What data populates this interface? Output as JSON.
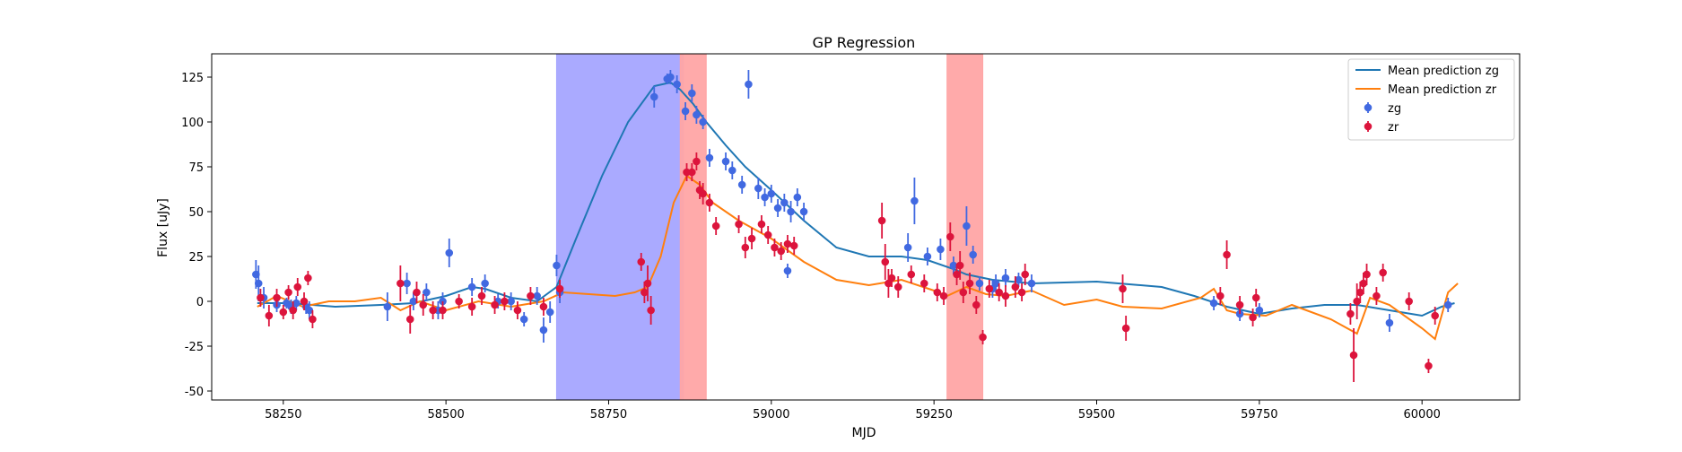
{
  "chart_data": {
    "type": "scatter",
    "title": "GP Regression",
    "xlabel": "MJD",
    "ylabel": "Flux [uJy]",
    "xlim": [
      58140,
      60150
    ],
    "ylim": [
      -55,
      138
    ],
    "xticks": [
      58250,
      58500,
      58750,
      59000,
      59250,
      59500,
      59750,
      60000
    ],
    "yticks": [
      -50,
      -25,
      0,
      25,
      50,
      75,
      100,
      125
    ],
    "legend_position": "top-right",
    "shaded_regions": [
      {
        "x0": 58670,
        "x1": 58865,
        "color": "#a5a5ff"
      },
      {
        "x0": 58860,
        "x1": 58900,
        "color": "#ffa5a5"
      },
      {
        "x0": 59270,
        "x1": 59325,
        "color": "#ffa5a5"
      }
    ],
    "series": [
      {
        "name": "Mean prediction zg",
        "kind": "line",
        "color": "#1f77b4",
        "x": [
          58210,
          58260,
          58330,
          58400,
          58450,
          58500,
          58540,
          58560,
          58600,
          58640,
          58670,
          58700,
          58740,
          58780,
          58820,
          58845,
          58860,
          58880,
          58900,
          58930,
          58960,
          59000,
          59050,
          59100,
          59150,
          59200,
          59240,
          59280,
          59300,
          59340,
          59400,
          59500,
          59600,
          59650,
          59700,
          59750,
          59800,
          59850,
          59900,
          59950,
          60000,
          60030,
          60050
        ],
        "y": [
          -1,
          -1,
          -3,
          -2,
          -1,
          3,
          8,
          7,
          2,
          0,
          8,
          35,
          70,
          100,
          120,
          122,
          118,
          110,
          100,
          87,
          75,
          62,
          45,
          30,
          25,
          25,
          23,
          18,
          15,
          12,
          10,
          11,
          8,
          3,
          -3,
          -7,
          -4,
          -2,
          -2,
          -5,
          -8,
          -3,
          -1
        ]
      },
      {
        "name": "Mean prediction zr",
        "kind": "line",
        "color": "#ff7f0e",
        "x": [
          58210,
          58240,
          58280,
          58320,
          58360,
          58400,
          58430,
          58460,
          58500,
          58550,
          58600,
          58650,
          58680,
          58720,
          58760,
          58790,
          58810,
          58830,
          58850,
          58870,
          58890,
          58910,
          58950,
          59000,
          59050,
          59100,
          59150,
          59200,
          59250,
          59270,
          59300,
          59330,
          59360,
          59400,
          59450,
          59500,
          59540,
          59600,
          59660,
          59680,
          59700,
          59720,
          59760,
          59800,
          59860,
          59900,
          59920,
          59950,
          60000,
          60020,
          60040,
          60055
        ],
        "y": [
          -3,
          3,
          -3,
          0,
          0,
          2,
          -5,
          0,
          -5,
          0,
          -3,
          0,
          5,
          4,
          3,
          5,
          8,
          25,
          55,
          70,
          65,
          55,
          45,
          35,
          22,
          12,
          9,
          12,
          6,
          3,
          8,
          4,
          3,
          6,
          -2,
          1,
          -3,
          -4,
          2,
          7,
          -5,
          -7,
          -8,
          -2,
          -10,
          -18,
          2,
          -2,
          -15,
          -21,
          5,
          10
        ]
      },
      {
        "name": "zg",
        "kind": "errorbar",
        "color": "#4169e1",
        "x": [
          58208,
          58212,
          58220,
          58240,
          58255,
          58262,
          58270,
          58285,
          58290,
          58410,
          58440,
          58450,
          58470,
          58488,
          58495,
          58505,
          58540,
          58560,
          58580,
          58600,
          58620,
          58640,
          58650,
          58660,
          58670,
          58675,
          58820,
          58840,
          58845,
          58855,
          58868,
          58878,
          58885,
          58895,
          58905,
          58930,
          58940,
          58955,
          58965,
          58980,
          58990,
          59000,
          59010,
          59020,
          59025,
          59030,
          59040,
          59050,
          59210,
          59220,
          59240,
          59260,
          59280,
          59300,
          59310,
          59320,
          59340,
          59345,
          59360,
          59380,
          59400,
          59680,
          59720,
          59750,
          59950,
          60040
        ],
        "y": [
          15,
          10,
          2,
          -2,
          -1,
          -3,
          -1,
          -3,
          -5,
          -3,
          10,
          0,
          5,
          -5,
          0,
          27,
          8,
          10,
          0,
          0,
          -10,
          3,
          -16,
          -6,
          20,
          5,
          114,
          124,
          125,
          121,
          106,
          116,
          104,
          100,
          80,
          78,
          73,
          65,
          121,
          63,
          58,
          60,
          52,
          55,
          17,
          50,
          58,
          50,
          30,
          56,
          25,
          29,
          20,
          42,
          26,
          10,
          7,
          10,
          13,
          12,
          10,
          -1,
          -7,
          -5,
          -12,
          -2
        ],
        "yerr": [
          8,
          10,
          6,
          4,
          3,
          4,
          4,
          4,
          5,
          8,
          6,
          5,
          5,
          5,
          5,
          8,
          5,
          5,
          4,
          5,
          4,
          5,
          7,
          6,
          6,
          6,
          6,
          3,
          4,
          5,
          5,
          5,
          5,
          4,
          5,
          5,
          5,
          5,
          8,
          6,
          5,
          5,
          5,
          5,
          4,
          6,
          5,
          5,
          8,
          13,
          5,
          6,
          5,
          11,
          5,
          4,
          5,
          5,
          5,
          4,
          5,
          4,
          4,
          4,
          5,
          4
        ]
      },
      {
        "name": "zr",
        "kind": "errorbar",
        "color": "#dc143c",
        "x": [
          58215,
          58228,
          58240,
          58250,
          58258,
          58265,
          58272,
          58282,
          58288,
          58295,
          58430,
          58445,
          58455,
          58465,
          58480,
          58495,
          58520,
          58540,
          58555,
          58575,
          58590,
          58610,
          58630,
          58650,
          58675,
          58800,
          58805,
          58810,
          58815,
          58870,
          58878,
          58885,
          58890,
          58895,
          58905,
          58915,
          58950,
          58960,
          58970,
          58985,
          58995,
          59005,
          59015,
          59025,
          59035,
          59170,
          59175,
          59180,
          59185,
          59195,
          59215,
          59235,
          59255,
          59265,
          59275,
          59285,
          59290,
          59295,
          59305,
          59315,
          59325,
          59335,
          59350,
          59360,
          59375,
          59385,
          59390,
          59540,
          59545,
          59690,
          59700,
          59720,
          59740,
          59745,
          59890,
          59895,
          59900,
          59905,
          59910,
          59915,
          59930,
          59940,
          59980,
          60010,
          60020
        ],
        "y": [
          2,
          -8,
          2,
          -6,
          5,
          -5,
          8,
          0,
          13,
          -10,
          10,
          -10,
          5,
          -2,
          -5,
          -5,
          0,
          -3,
          3,
          -2,
          0,
          -5,
          3,
          -3,
          7,
          22,
          5,
          10,
          -5,
          72,
          72,
          78,
          62,
          60,
          55,
          42,
          43,
          30,
          35,
          43,
          37,
          30,
          28,
          32,
          31,
          45,
          22,
          10,
          13,
          8,
          15,
          10,
          5,
          3,
          36,
          15,
          20,
          5,
          10,
          -2,
          -20,
          7,
          5,
          3,
          8,
          5,
          15,
          7,
          -15,
          3,
          26,
          -2,
          -9,
          2,
          -7,
          -30,
          0,
          5,
          10,
          15,
          3,
          16,
          0,
          -36,
          -8
        ],
        "yerr": [
          5,
          6,
          5,
          4,
          4,
          5,
          5,
          5,
          4,
          5,
          10,
          8,
          6,
          6,
          5,
          5,
          4,
          5,
          5,
          5,
          5,
          5,
          5,
          5,
          5,
          5,
          6,
          10,
          8,
          5,
          5,
          5,
          5,
          6,
          5,
          5,
          5,
          6,
          6,
          5,
          5,
          5,
          5,
          5,
          5,
          10,
          10,
          8,
          5,
          6,
          5,
          5,
          5,
          5,
          8,
          6,
          8,
          6,
          6,
          5,
          4,
          5,
          5,
          6,
          6,
          5,
          6,
          8,
          7,
          5,
          8,
          5,
          5,
          5,
          6,
          15,
          10,
          6,
          6,
          6,
          5,
          5,
          5,
          4,
          5
        ]
      }
    ]
  }
}
